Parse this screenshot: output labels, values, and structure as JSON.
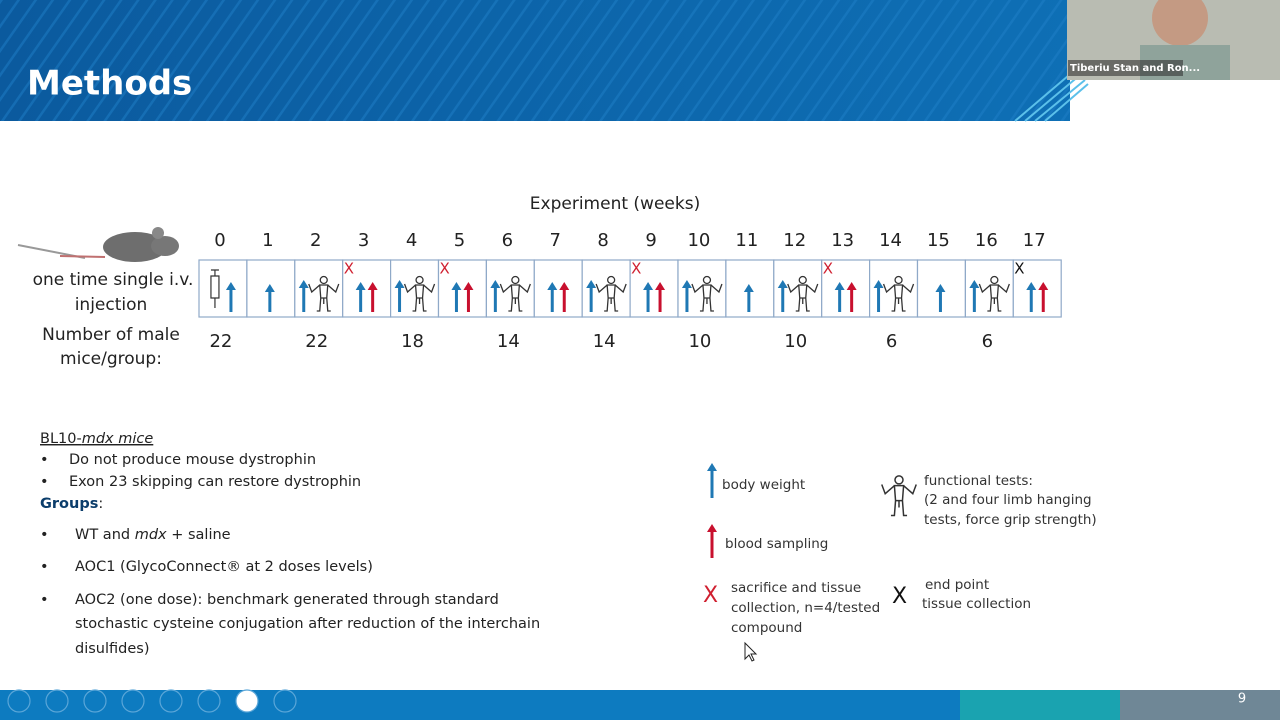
{
  "header": {
    "title": "Methods"
  },
  "video": {
    "name": "Tiberiu Stan and Ron..."
  },
  "timeline": {
    "title": "Experiment (weeks)",
    "weeks": [
      0,
      1,
      2,
      3,
      4,
      5,
      6,
      7,
      8,
      9,
      10,
      11,
      12,
      13,
      14,
      15,
      16,
      17
    ],
    "injection_label": [
      "one time single i.v.",
      "injection"
    ],
    "count_label": [
      "Number of male",
      "mice/group:"
    ],
    "counts": [
      22,
      null,
      22,
      null,
      18,
      null,
      14,
      null,
      14,
      null,
      10,
      null,
      10,
      null,
      6,
      null,
      6,
      null
    ]
  },
  "mice": {
    "heading": [
      "BL10-",
      "mdx mice"
    ],
    "bullets": [
      "Do not produce mouse dystrophin",
      "Exon 23 skipping can restore dystrophin"
    ]
  },
  "groups": {
    "heading": "Groups",
    "items": [
      [
        "WT and ",
        "mdx",
        " + saline"
      ],
      [
        "AOC1 (GlycoConnect® at 2 doses levels)"
      ],
      [
        "AOC2 (one dose): benchmark generated through standard",
        "stochastic cysteine conjugation after reduction of the interchain",
        "disulfides)"
      ]
    ]
  },
  "legend": {
    "body_weight": "body weight",
    "blood_sampling": "blood sampling",
    "sacrifice": [
      "sacrifice and tissue",
      "collection, n=4/tested",
      "compound"
    ],
    "functional": [
      "functional tests:",
      "(2 and four limb hanging",
      "tests, force grip strength)"
    ],
    "end_point": [
      "end point",
      "tissue collection"
    ]
  },
  "footer": {
    "page": 9
  }
}
